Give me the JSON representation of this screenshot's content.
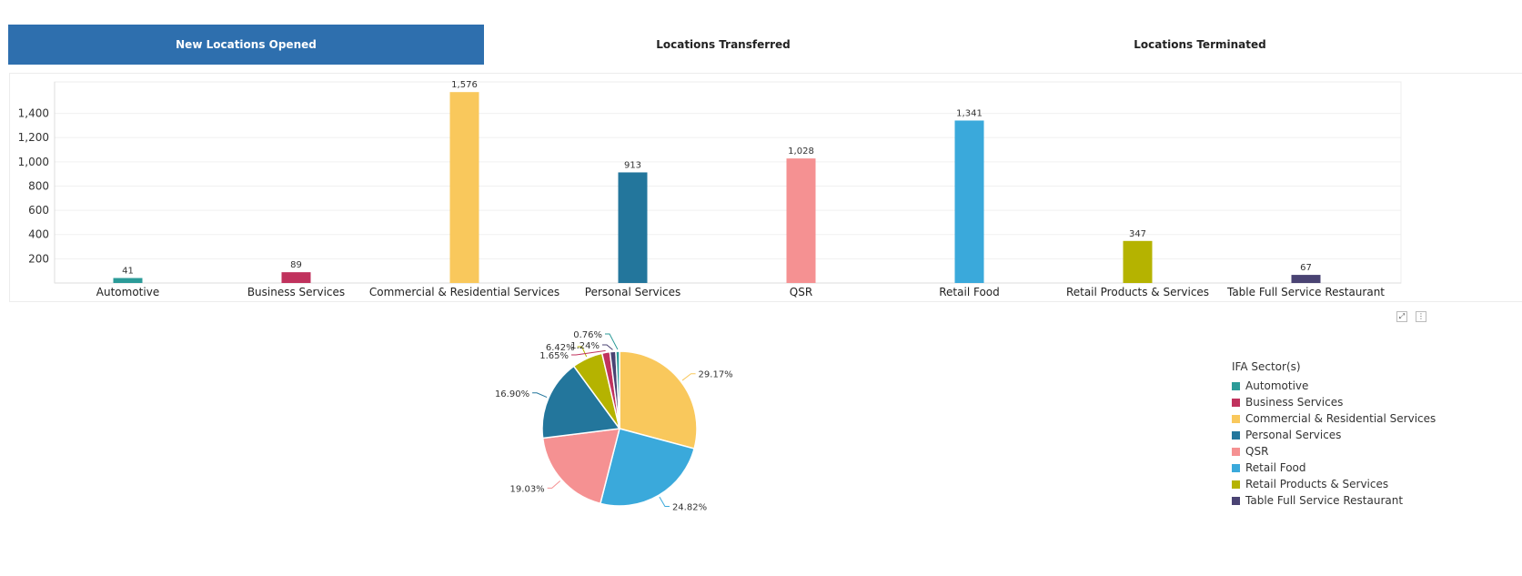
{
  "tabs": [
    {
      "label": "New Locations Opened",
      "active": true
    },
    {
      "label": "Locations Transferred",
      "active": false
    },
    {
      "label": "Locations Terminated",
      "active": false
    }
  ],
  "colors": {
    "accent": "#2e6fae"
  },
  "chart_data": [
    {
      "type": "bar",
      "categories": [
        "Automotive",
        "Business Services",
        "Commercial & Residential Services",
        "Personal Services",
        "QSR",
        "Retail Food",
        "Retail Products & Services",
        "Table Full Service Restaurant"
      ],
      "values": [
        41,
        89,
        1576,
        913,
        1028,
        1341,
        347,
        67
      ],
      "data_labels": [
        "41",
        "89",
        "1,576",
        "913",
        "1,028",
        "1,341",
        "347",
        "67"
      ],
      "colors": [
        "#2b9b98",
        "#c0325d",
        "#f9c85c",
        "#23769c",
        "#f59192",
        "#3aa9db",
        "#b5b300",
        "#4a4373"
      ],
      "yticks": [
        "200",
        "400",
        "600",
        "800",
        "1,000",
        "1,200",
        "1,400"
      ],
      "ytick_values": [
        200,
        400,
        600,
        800,
        1000,
        1200,
        1400
      ],
      "ylim": [
        0,
        1660
      ],
      "grid": true
    },
    {
      "type": "pie",
      "legend_title": "IFA Sector(s)",
      "legend_position": "right",
      "slices": [
        {
          "name": "Commercial & Residential Services",
          "value": 29.17,
          "label": "29.17%",
          "color": "#f9c85c"
        },
        {
          "name": "Retail Food",
          "value": 24.82,
          "label": "24.82%",
          "color": "#3aa9db"
        },
        {
          "name": "QSR",
          "value": 19.03,
          "label": "19.03%",
          "color": "#f59192"
        },
        {
          "name": "Personal Services",
          "value": 16.9,
          "label": "16.90%",
          "color": "#23769c"
        },
        {
          "name": "Retail Products & Services",
          "value": 6.42,
          "label": "6.42%",
          "color": "#b5b300"
        },
        {
          "name": "Business Services",
          "value": 1.65,
          "label": "1.65%",
          "color": "#c0325d"
        },
        {
          "name": "Table Full Service Restaurant",
          "value": 1.24,
          "label": "1.24%",
          "color": "#4a4373"
        },
        {
          "name": "Automotive",
          "value": 0.76,
          "label": "0.76%",
          "color": "#2b9b98"
        }
      ],
      "legend": [
        {
          "name": "Automotive",
          "color": "#2b9b98"
        },
        {
          "name": "Business Services",
          "color": "#c0325d"
        },
        {
          "name": "Commercial & Residential Services",
          "color": "#f9c85c"
        },
        {
          "name": "Personal Services",
          "color": "#23769c"
        },
        {
          "name": "QSR",
          "color": "#f59192"
        },
        {
          "name": "Retail Food",
          "color": "#3aa9db"
        },
        {
          "name": "Retail Products & Services",
          "color": "#b5b300"
        },
        {
          "name": "Table Full Service Restaurant",
          "color": "#4a4373"
        }
      ]
    }
  ],
  "toolbar": {
    "expand_icon": "expand-icon",
    "menu_icon": "more-vertical-icon"
  }
}
